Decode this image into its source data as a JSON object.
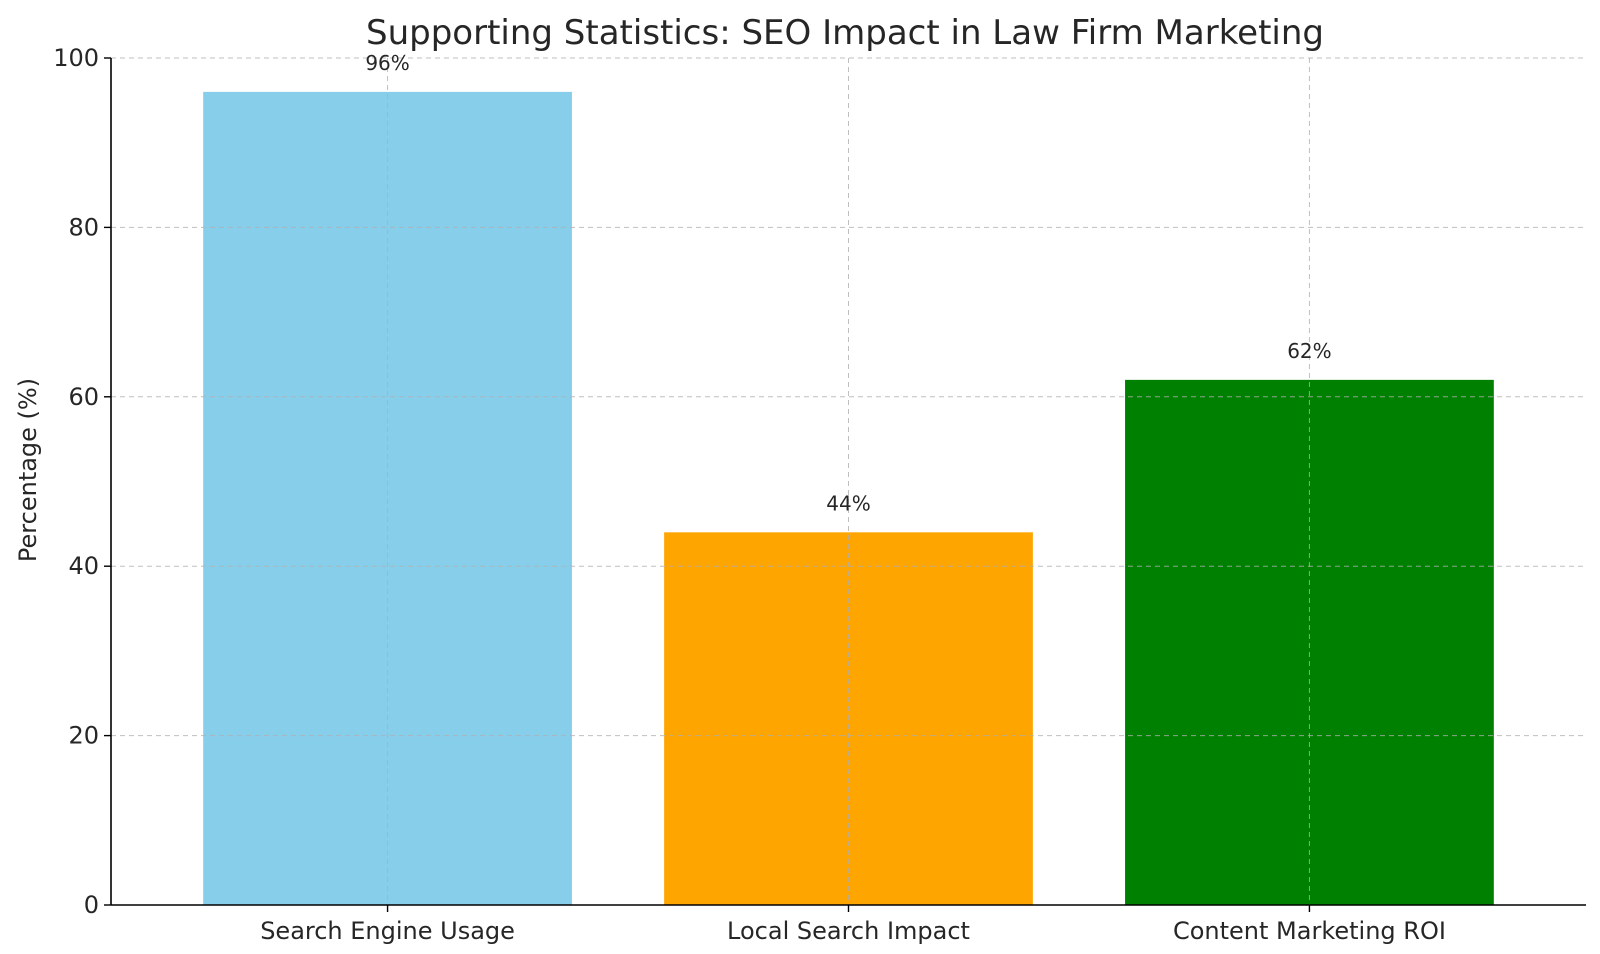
{
  "chart_data": {
    "type": "bar",
    "title": "Supporting Statistics: SEO Impact in Law Firm Marketing",
    "xlabel": "",
    "ylabel": "Percentage (%)",
    "categories": [
      "Search Engine Usage",
      "Local Search Impact",
      "Content Marketing ROI"
    ],
    "values": [
      96,
      44,
      62
    ],
    "data_labels": [
      "96%",
      "44%",
      "62%"
    ],
    "colors": [
      "#87ceeb",
      "#ffa500",
      "#008000"
    ],
    "ylim": [
      0,
      100
    ],
    "yticks": [
      0,
      20,
      40,
      60,
      80,
      100
    ],
    "ytick_labels": [
      "0",
      "20",
      "40",
      "60",
      "80",
      "100"
    ],
    "grid": true,
    "legend": "none"
  }
}
